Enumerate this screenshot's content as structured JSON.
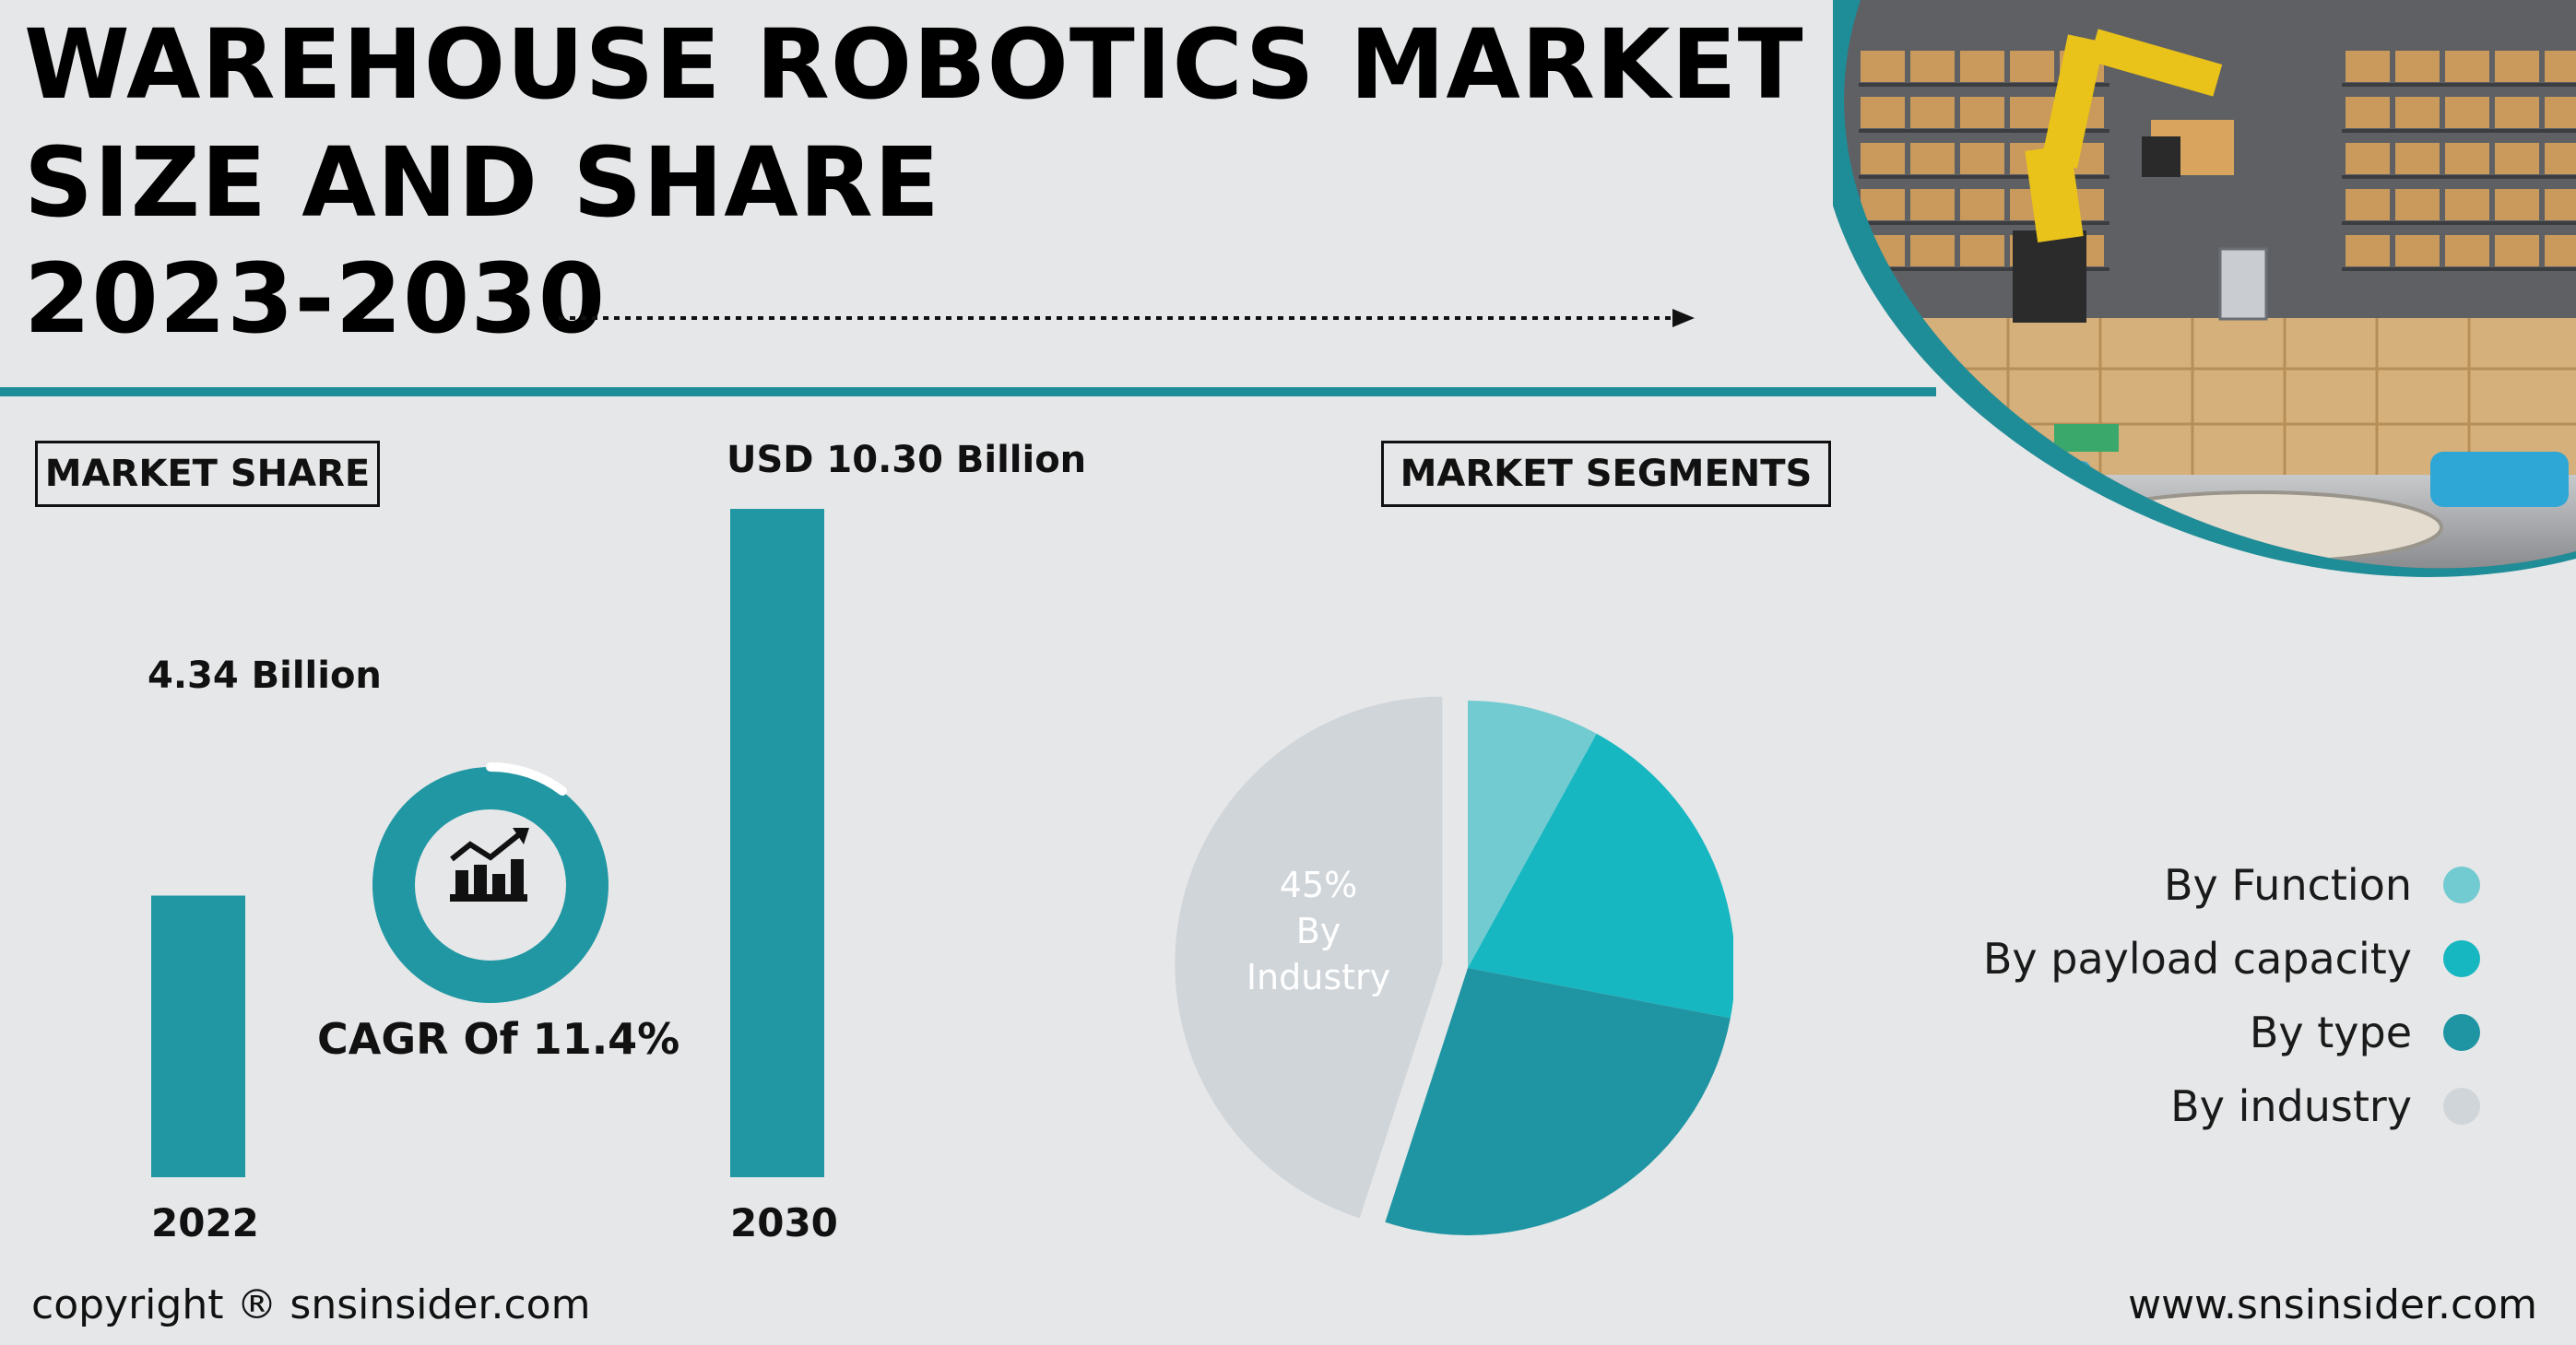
{
  "header": {
    "title_line1": "WAREHOUSE ROBOTICS MARKET",
    "title_line2": "SIZE AND SHARE",
    "title_line3": "2023-2030"
  },
  "market_share": {
    "box_label": "MARKET SHARE",
    "bar_2022_label": "4.34 Billion",
    "bar_2030_label": "USD 10.30 Billion",
    "year_2022": "2022",
    "year_2030": "2030",
    "cagr_label": "CAGR Of 11.4%",
    "icon": "chart-growth-icon"
  },
  "market_segments": {
    "box_label": "MARKET SEGMENTS",
    "pie_text_pct": "45%",
    "pie_text_by": "By",
    "pie_text_segment": "Industry"
  },
  "legend": [
    {
      "label": "By Function",
      "color": "#72cbd1"
    },
    {
      "label": "By payload capacity",
      "color": "#17b7c2"
    },
    {
      "label": "By type",
      "color": "#1f95a3"
    },
    {
      "label": "By industry",
      "color": "#d0d5da"
    }
  ],
  "colors": {
    "accent_teal": "#1f8d98",
    "bar_teal": "#2097a3",
    "background": "#e6e7e8"
  },
  "footer": {
    "copyright": "copyright ® snsinsider.com",
    "website": "www.snsinsider.com"
  },
  "chart_data": [
    {
      "type": "bar",
      "categories": [
        "2022",
        "2030"
      ],
      "values": [
        4.34,
        10.3
      ],
      "ylabel": "",
      "xlabel": "",
      "unit": "USD Billion",
      "ylim": [
        0,
        10.3
      ]
    },
    {
      "type": "pie",
      "categories": [
        "By Function",
        "By payload capacity",
        "By type",
        "By industry"
      ],
      "values": [
        8,
        20,
        27,
        45
      ],
      "highlighted": {
        "category": "By industry",
        "value": 45,
        "exploded": true
      }
    }
  ]
}
